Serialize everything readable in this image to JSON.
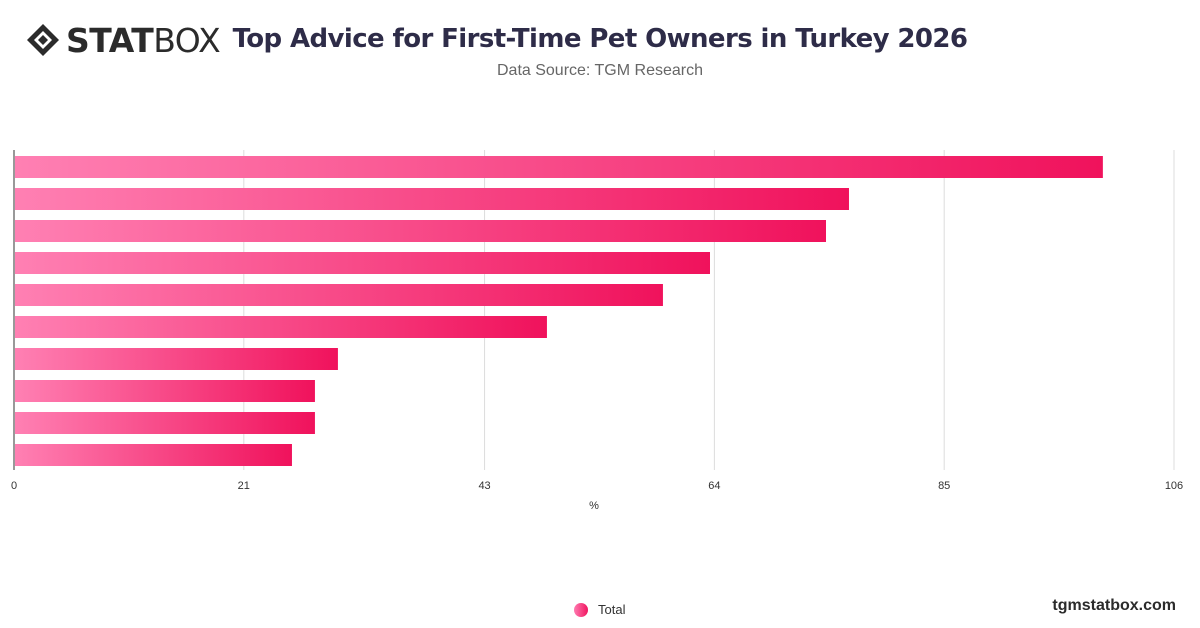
{
  "brand": {
    "logo_bold": "STAT",
    "logo_light": "BOX",
    "footer": "tgmstatbox.com"
  },
  "header": {
    "title": "Top Advice for First-Time Pet Owners in Turkey 2026",
    "subtitle": "Data Source: TGM Research"
  },
  "legend": {
    "label": "Total"
  },
  "colors": {
    "bar_start": "#ff80b3",
    "bar_end": "#f0125c",
    "grid": "#dcdcdc",
    "axis_text": "#333333"
  },
  "chart_data": {
    "type": "bar",
    "orientation": "horizontal",
    "categories": [
      "",
      "",
      "",
      "",
      "",
      "",
      "",
      "",
      "",
      ""
    ],
    "series": [
      {
        "name": "Total",
        "values": [
          99.5,
          76.3,
          74.2,
          63.6,
          59.3,
          48.7,
          29.6,
          27.5,
          27.5,
          25.4
        ]
      }
    ],
    "xlabel": "%",
    "ylabel": "",
    "xlim": [
      0,
      106
    ],
    "xticks": [
      "0",
      "21",
      "43",
      "64",
      "85",
      "106"
    ],
    "grid": true,
    "legend_position": "bottom"
  }
}
